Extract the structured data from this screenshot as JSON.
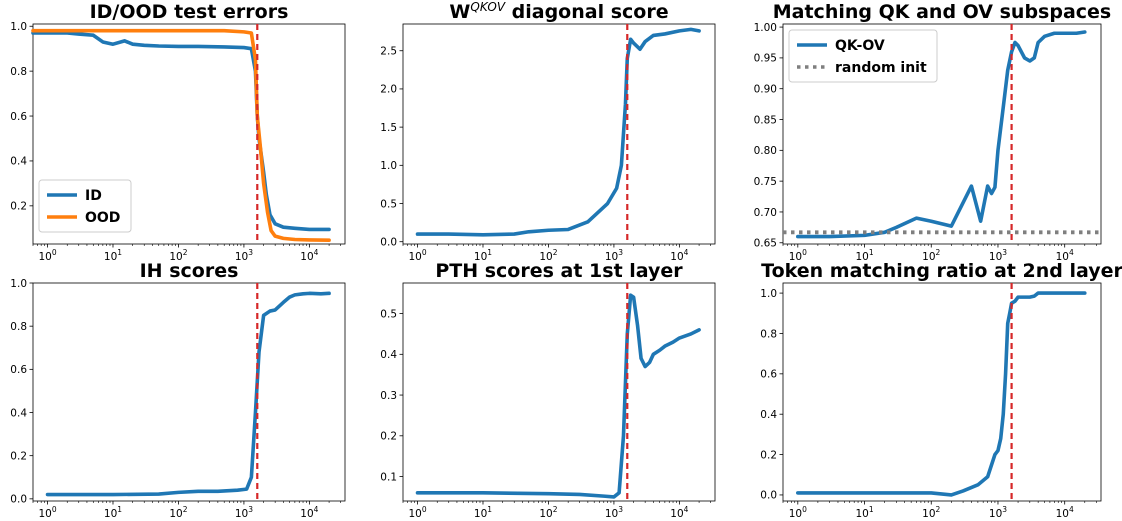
{
  "figure": {
    "colors": {
      "blue": "#1f77b4",
      "orange": "#ff7f0e",
      "red": "#d62728",
      "gray": "#7f7f7f"
    },
    "vline_x": 1600
  },
  "chart_data": [
    {
      "type": "line",
      "title": "ID/OOD test errors",
      "title_sup": "",
      "xscale": "log",
      "xlim": [
        0.6,
        35000
      ],
      "ylim": [
        0.03,
        1.01
      ],
      "yticks": [
        0.2,
        0.4,
        0.6,
        0.8,
        1.0
      ],
      "ytick_labels": [
        "0.2",
        "0.4",
        "0.6",
        "0.8",
        "1.0"
      ],
      "legend": {
        "placement": "lower-left"
      },
      "vline": 1600,
      "series": [
        {
          "name": "ID",
          "color": "#1f77b4",
          "x": [
            0.6,
            1,
            2,
            3,
            5,
            7,
            10,
            15,
            20,
            30,
            50,
            100,
            200,
            500,
            1000,
            1300,
            1500,
            1600,
            1700,
            2000,
            2200,
            2500,
            3000,
            4000,
            6000,
            10000,
            20000
          ],
          "y": [
            0.97,
            0.97,
            0.97,
            0.965,
            0.96,
            0.93,
            0.92,
            0.935,
            0.92,
            0.915,
            0.912,
            0.91,
            0.91,
            0.908,
            0.905,
            0.9,
            0.8,
            0.6,
            0.5,
            0.35,
            0.25,
            0.16,
            0.12,
            0.105,
            0.1,
            0.095,
            0.095
          ]
        },
        {
          "name": "OOD",
          "color": "#ff7f0e",
          "x": [
            0.6,
            1,
            10,
            100,
            500,
            1000,
            1300,
            1500,
            1600,
            1800,
            2000,
            2300,
            2600,
            3000,
            4000,
            6000,
            10000,
            20000
          ],
          "y": [
            0.98,
            0.98,
            0.98,
            0.98,
            0.98,
            0.975,
            0.97,
            0.85,
            0.6,
            0.45,
            0.3,
            0.17,
            0.09,
            0.065,
            0.055,
            0.05,
            0.048,
            0.047
          ]
        }
      ]
    },
    {
      "type": "line",
      "title": "W",
      "title_sup": "QKOV",
      "title_rest": " diagonal score",
      "xscale": "log",
      "xlim": [
        0.6,
        35000
      ],
      "ylim": [
        -0.03,
        2.85
      ],
      "yticks": [
        0.0,
        0.5,
        1.0,
        1.5,
        2.0,
        2.5
      ],
      "ytick_labels": [
        "0.0",
        "0.5",
        "1.0",
        "1.5",
        "2.0",
        "2.5"
      ],
      "vline": 1600,
      "series": [
        {
          "name": "",
          "color": "#1f77b4",
          "x": [
            1,
            3,
            10,
            30,
            50,
            100,
            200,
            400,
            800,
            1100,
            1300,
            1500,
            1600,
            1800,
            2000,
            2500,
            3000,
            4000,
            6000,
            10000,
            15000,
            20000
          ],
          "y": [
            0.1,
            0.1,
            0.09,
            0.1,
            0.13,
            0.15,
            0.16,
            0.26,
            0.5,
            0.7,
            1.0,
            1.8,
            2.4,
            2.65,
            2.6,
            2.52,
            2.62,
            2.7,
            2.72,
            2.76,
            2.78,
            2.76
          ]
        }
      ]
    },
    {
      "type": "line",
      "title": "Matching QK and OV subspaces",
      "title_sup": "",
      "xscale": "log",
      "xlim": [
        0.6,
        35000
      ],
      "ylim": [
        0.648,
        1.005
      ],
      "yticks": [
        0.65,
        0.7,
        0.75,
        0.8,
        0.85,
        0.9,
        0.95,
        1.0
      ],
      "ytick_labels": [
        "0.65",
        "0.70",
        "0.75",
        "0.80",
        "0.85",
        "0.90",
        "0.95",
        "1.00"
      ],
      "legend": {
        "placement": "upper-left"
      },
      "vline": 1600,
      "series": [
        {
          "name": "QK-OV",
          "color": "#1f77b4",
          "x": [
            1,
            3,
            10,
            20,
            30,
            60,
            100,
            200,
            400,
            550,
            700,
            800,
            900,
            1000,
            1200,
            1400,
            1600,
            1800,
            2000,
            2500,
            3000,
            3500,
            4000,
            5000,
            7000,
            10000,
            15000,
            20000
          ],
          "y": [
            0.66,
            0.66,
            0.662,
            0.667,
            0.675,
            0.69,
            0.685,
            0.677,
            0.742,
            0.685,
            0.742,
            0.73,
            0.74,
            0.8,
            0.87,
            0.93,
            0.96,
            0.975,
            0.97,
            0.95,
            0.945,
            0.95,
            0.975,
            0.985,
            0.99,
            0.99,
            0.99,
            0.992
          ]
        },
        {
          "name": "random init",
          "color": "#7f7f7f",
          "dashed": true,
          "x": [
            0.6,
            35000
          ],
          "y": [
            0.667,
            0.667
          ]
        }
      ]
    },
    {
      "type": "line",
      "title": "IH scores",
      "title_sup": "",
      "xscale": "log",
      "xlim": [
        0.6,
        35000
      ],
      "ylim": [
        -0.01,
        1.0
      ],
      "yticks": [
        0.0,
        0.2,
        0.4,
        0.6,
        0.8,
        1.0
      ],
      "ytick_labels": [
        "0.0",
        "0.2",
        "0.4",
        "0.6",
        "0.8",
        "1.0"
      ],
      "vline": 1600,
      "series": [
        {
          "name": "",
          "color": "#1f77b4",
          "x": [
            1,
            10,
            50,
            100,
            200,
            400,
            800,
            1100,
            1300,
            1500,
            1700,
            2000,
            2500,
            3000,
            4000,
            5000,
            6000,
            8000,
            10000,
            15000,
            20000
          ],
          "y": [
            0.02,
            0.02,
            0.022,
            0.03,
            0.035,
            0.035,
            0.04,
            0.045,
            0.1,
            0.4,
            0.68,
            0.85,
            0.87,
            0.875,
            0.91,
            0.935,
            0.945,
            0.95,
            0.952,
            0.95,
            0.952
          ]
        }
      ]
    },
    {
      "type": "line",
      "title": "PTH scores at 1st layer",
      "title_sup": "",
      "xscale": "log",
      "xlim": [
        0.6,
        35000
      ],
      "ylim": [
        0.04,
        0.575
      ],
      "yticks": [
        0.1,
        0.2,
        0.3,
        0.4,
        0.5
      ],
      "ytick_labels": [
        "0.1",
        "0.2",
        "0.3",
        "0.4",
        "0.5"
      ],
      "vline": 1600,
      "series": [
        {
          "name": "",
          "color": "#1f77b4",
          "x": [
            1,
            10,
            100,
            300,
            700,
            1000,
            1200,
            1400,
            1600,
            1800,
            2000,
            2300,
            2600,
            3000,
            3500,
            4000,
            5000,
            6000,
            8000,
            10000,
            15000,
            20000
          ],
          "y": [
            0.06,
            0.06,
            0.058,
            0.056,
            0.052,
            0.05,
            0.06,
            0.2,
            0.45,
            0.545,
            0.54,
            0.47,
            0.39,
            0.37,
            0.38,
            0.4,
            0.41,
            0.42,
            0.43,
            0.44,
            0.45,
            0.46
          ]
        }
      ]
    },
    {
      "type": "line",
      "title": "Token matching ratio at 2nd layer",
      "title_sup": "",
      "xscale": "log",
      "xlim": [
        0.6,
        35000
      ],
      "ylim": [
        -0.03,
        1.05
      ],
      "yticks": [
        0.0,
        0.2,
        0.4,
        0.6,
        0.8,
        1.0
      ],
      "ytick_labels": [
        "0.0",
        "0.2",
        "0.4",
        "0.6",
        "0.8",
        "1.0"
      ],
      "vline": 1600,
      "series": [
        {
          "name": "",
          "color": "#1f77b4",
          "x": [
            1,
            10,
            50,
            100,
            200,
            300,
            500,
            700,
            900,
            1000,
            1100,
            1200,
            1300,
            1400,
            1500,
            1600,
            1800,
            2000,
            2500,
            3000,
            3500,
            4000,
            6000,
            10000,
            20000
          ],
          "y": [
            0.01,
            0.01,
            0.01,
            0.01,
            0.0,
            0.02,
            0.05,
            0.09,
            0.2,
            0.22,
            0.28,
            0.4,
            0.6,
            0.85,
            0.9,
            0.95,
            0.96,
            0.98,
            0.98,
            0.98,
            0.985,
            1.0,
            1.0,
            1.0,
            1.0
          ]
        }
      ]
    }
  ]
}
